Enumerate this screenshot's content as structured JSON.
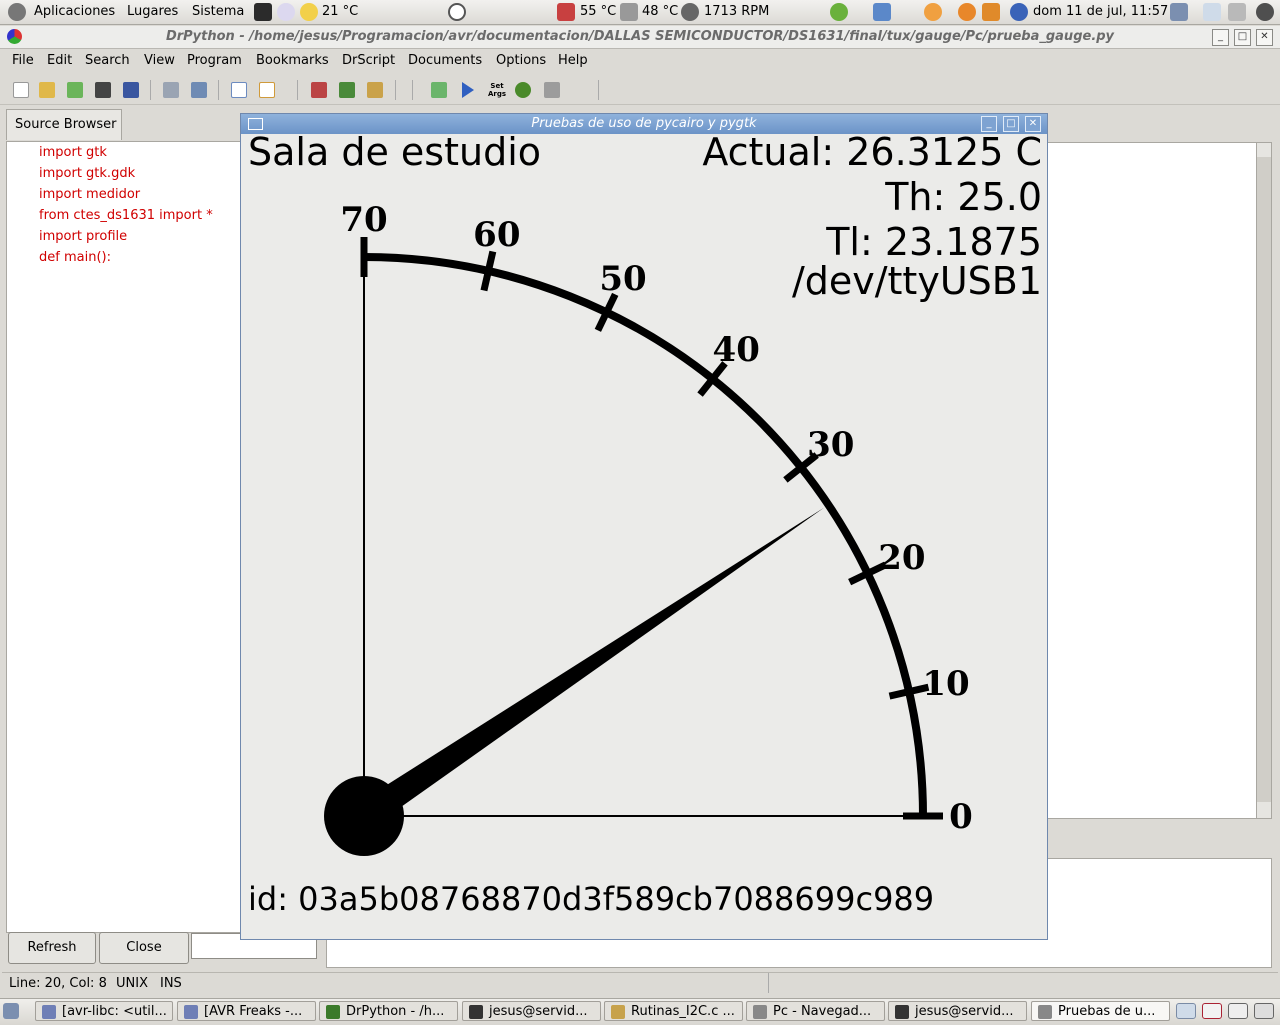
{
  "panel": {
    "apps": "Aplicaciones",
    "places": "Lugares",
    "system": "Sistema",
    "weather": "21 °C",
    "cpu_temp": "55 °C",
    "hdd_temp": "48 °C",
    "fan": "1713 RPM",
    "datetime": "dom 11 de jul, 11:57"
  },
  "window": {
    "title": "DrPython - /home/jesus/Programacion/avr/documentacion/DALLAS SEMICONDUCTOR/DS1631/final/tux/gauge/Pc/prueba_gauge.py"
  },
  "menu": [
    "File",
    "Edit",
    "Search",
    "View",
    "Program",
    "Bookmarks",
    "DrScript",
    "Documents",
    "Options",
    "Help"
  ],
  "toolbar": {
    "set_args": "Set Args"
  },
  "source_browser": {
    "tab": "Source Browser",
    "lines": [
      "import gtk",
      "import gtk.gdk",
      "import medidor",
      "from ctes_ds1631 import *",
      "import profile",
      "def main():"
    ],
    "refresh": "Refresh",
    "close": "Close"
  },
  "status": {
    "position": "Line: 20, Col: 8",
    "eol": "UNIX",
    "mode": "INS"
  },
  "gauge_window": {
    "title": "Pruebas de uso de pycairo y pygtk",
    "room": "Sala de estudio",
    "actual": "Actual: 26.3125 C",
    "th": "Th: 25.0",
    "tl": "Tl: 23.1875",
    "device": "/dev/ttyUSB1",
    "id": "id: 03a5b08768870d3f589cb7088699c989"
  },
  "gauge": {
    "min": 0,
    "max": 70,
    "ticks": [
      "0",
      "10",
      "20",
      "30",
      "40",
      "50",
      "60",
      "70"
    ],
    "needle_value": 26.3125
  },
  "taskbar": [
    {
      "label": "[avr-libc: <util...",
      "color": "#6f7fb6"
    },
    {
      "label": "[AVR Freaks -...",
      "color": "#6f7fb6"
    },
    {
      "label": "DrPython - /h...",
      "color": "#3b7a2a"
    },
    {
      "label": "jesus@servid...",
      "color": "#333333"
    },
    {
      "label": "Rutinas_I2C.c ...",
      "color": "#c7a24b"
    },
    {
      "label": "Pc - Navegad...",
      "color": "#888888"
    },
    {
      "label": "jesus@servid...",
      "color": "#333333"
    },
    {
      "label": "Pruebas de u...",
      "color": "#888888"
    }
  ]
}
